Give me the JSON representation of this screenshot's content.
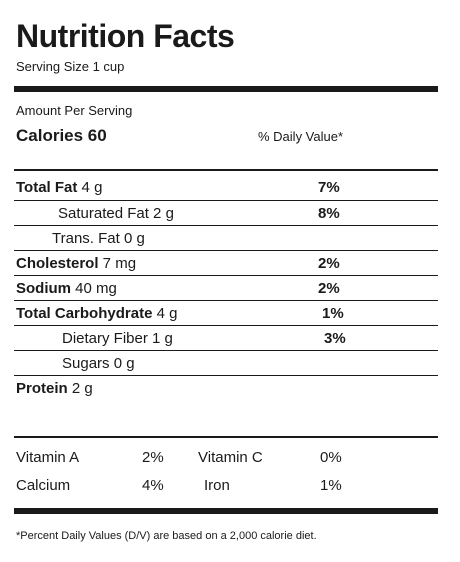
{
  "title": "Nutrition Facts",
  "serving": "Serving Size 1 cup",
  "amount_per_serving": "Amount Per Serving",
  "calories": "Calories 60",
  "daily_value_header": "% Daily Value*",
  "nutrients": [
    {
      "label": "Total Fat",
      "amount": " 4 g",
      "pct": "7%"
    },
    {
      "label": "Saturated Fat 2 g",
      "amount": "",
      "pct": "8%"
    },
    {
      "label": "Trans. Fat 0 g",
      "amount": "",
      "pct": ""
    },
    {
      "label": "Cholesterol",
      "amount": " 7 mg",
      "pct": "2%"
    },
    {
      "label": "Sodium",
      "amount": " 40 mg",
      "pct": "2%"
    },
    {
      "label": "Total Carbohydrate",
      "amount": " 4 g",
      "pct": "1%"
    },
    {
      "label": "Dietary Fiber 1 g",
      "amount": "",
      "pct": "3%"
    },
    {
      "label": "Sugars 0 g",
      "amount": "",
      "pct": ""
    },
    {
      "label": "Protein",
      "amount": " 2 g",
      "pct": ""
    }
  ],
  "vitamins": [
    {
      "left_name": "Vitamin A",
      "left_pct": "2%",
      "right_name": "Vitamin C",
      "right_pct": "0%"
    },
    {
      "left_name": "Calcium",
      "left_pct": "4%",
      "right_name": "Iron",
      "right_pct": "1%"
    }
  ],
  "footnote": "*Percent Daily Values (D/V) are based on a 2,000 calorie diet."
}
